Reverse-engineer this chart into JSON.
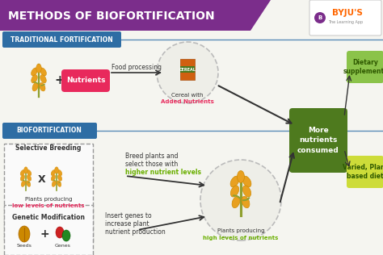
{
  "title": "METHODS OF BIOFORTIFICATION",
  "title_bg": "#7B2D8B",
  "title_color": "#FFFFFF",
  "bg_color": "#F5F5F0",
  "section1_label": "TRADITIONAL FORTIFICATION",
  "section1_bg": "#2E6DA4",
  "section1_text_color": "#FFFFFF",
  "section2_label": "BIOFORTIFICATION",
  "section2_bg": "#2E6DA4",
  "section2_text_color": "#FFFFFF",
  "nutrients_label": "Nutrients",
  "nutrients_color": "#E8295C",
  "nutrients_text_color": "#FFFFFF",
  "food_processing_text": "Food processing",
  "cereal_with": "Cereal with",
  "added_nutrients": "Added Nutrients",
  "added_nutrients_color": "#E8295C",
  "more_nutrients_label": "More\nnutrients\nconsumed",
  "more_nutrients_bg": "#4E7A1E",
  "more_nutrients_text_color": "#FFFFFF",
  "dietary_label": "Dietary\nsupplements",
  "dietary_bg": "#8BC34A",
  "dietary_text_color": "#2E5800",
  "varied_label": "Varied, Plant\nbased diet",
  "varied_bg": "#CDDC39",
  "varied_text_color": "#2E5800",
  "selective_label": "Selective Breeding",
  "selective_box_color": "#999999",
  "selective_bg": "#FAFAFA",
  "plants_low_line1": "Plants producing",
  "plants_low_line2": "low levels of nutrients",
  "plants_low_color": "#E8295C",
  "genetic_label": "Genetic Modification",
  "seeds_label": "Seeds",
  "genes_label": "Genes",
  "breed_line1": "Breed plants and",
  "breed_line2": "select those with",
  "breed_line3": "higher nutrient levels",
  "breed_line3_color": "#6AAF00",
  "insert_line1": "Insert genes to",
  "insert_line2": "increase plant",
  "insert_line3": "nutrient production",
  "plants_high_line1": "Plants producing",
  "plants_high_line2": "high levels of nutrients",
  "plants_high_color": "#6AAF00",
  "arrow_color": "#333333",
  "line_color": "#5B8DB8",
  "circle_fill": "#EEEEE8",
  "circle_edge": "#BBBBBB",
  "wheat_gold": "#E8A020",
  "wheat_stem": "#90A030",
  "cereal_orange": "#D06010",
  "cereal_green": "#4A7A20",
  "seeds_color": "#CC8800",
  "genes_red": "#CC2222",
  "genes_green": "#228822",
  "byju_purple": "#7B2D8B",
  "byju_orange": "#FF6600"
}
